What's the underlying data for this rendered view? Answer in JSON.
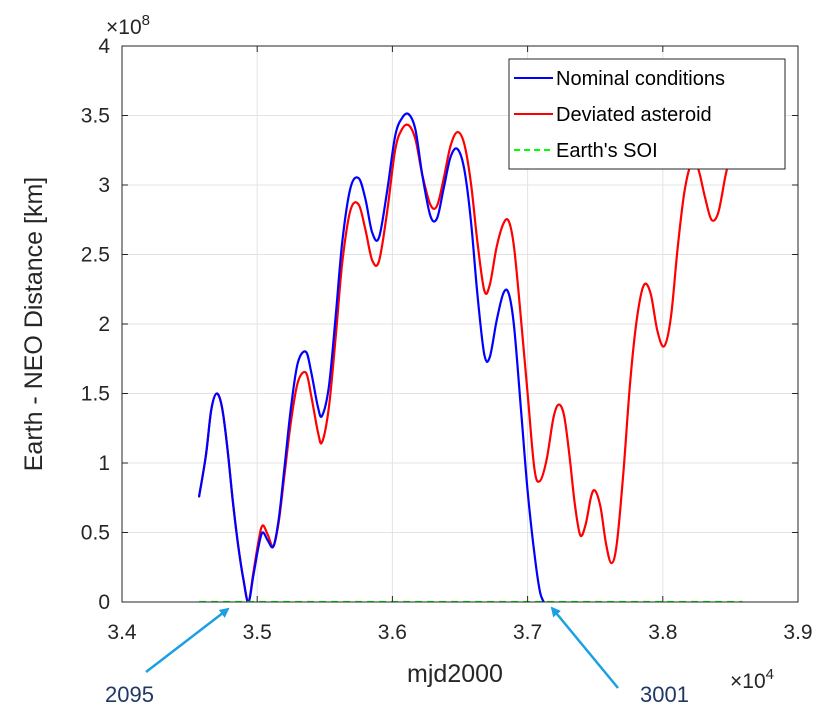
{
  "chart_data": {
    "type": "line",
    "xlabel": "mjd2000",
    "ylabel": "Earth - NEO Distance [km]",
    "x_exponent_label": "×10",
    "x_exponent_power": "4",
    "y_exponent_label": "×10",
    "y_exponent_power": "8",
    "xlim": [
      3.4,
      3.9
    ],
    "ylim": [
      0,
      4
    ],
    "x_ticks": [
      3.4,
      3.5,
      3.6,
      3.7,
      3.8,
      3.9
    ],
    "x_tick_labels": [
      "3.4",
      "3.5",
      "3.6",
      "3.7",
      "3.8",
      "3.9"
    ],
    "y_ticks": [
      0,
      0.5,
      1,
      1.5,
      2,
      2.5,
      3,
      3.5,
      4
    ],
    "y_tick_labels": [
      "0",
      "0.5",
      "1",
      "1.5",
      "2",
      "2.5",
      "3",
      "3.5",
      "4"
    ],
    "grid": true,
    "legend_position": "top-right",
    "series": [
      {
        "name": "Nominal conditions",
        "color": "#0000ff",
        "style": "solid",
        "points": [
          [
            3.457,
            0.76
          ],
          [
            3.462,
            1.05
          ],
          [
            3.466,
            1.38
          ],
          [
            3.47,
            1.5
          ],
          [
            3.474,
            1.4
          ],
          [
            3.478,
            1.1
          ],
          [
            3.482,
            0.72
          ],
          [
            3.486,
            0.4
          ],
          [
            3.49,
            0.15
          ],
          [
            3.4935,
            0.0
          ],
          [
            3.497,
            0.18
          ],
          [
            3.501,
            0.4
          ],
          [
            3.504,
            0.5
          ],
          [
            3.508,
            0.44
          ],
          [
            3.512,
            0.4
          ],
          [
            3.516,
            0.6
          ],
          [
            3.52,
            0.95
          ],
          [
            3.525,
            1.4
          ],
          [
            3.53,
            1.72
          ],
          [
            3.536,
            1.8
          ],
          [
            3.54,
            1.65
          ],
          [
            3.545,
            1.4
          ],
          [
            3.548,
            1.34
          ],
          [
            3.553,
            1.55
          ],
          [
            3.558,
            2.05
          ],
          [
            3.563,
            2.6
          ],
          [
            3.569,
            2.98
          ],
          [
            3.575,
            3.05
          ],
          [
            3.58,
            2.9
          ],
          [
            3.585,
            2.66
          ],
          [
            3.59,
            2.62
          ],
          [
            3.596,
            2.95
          ],
          [
            3.602,
            3.35
          ],
          [
            3.607,
            3.48
          ],
          [
            3.612,
            3.51
          ],
          [
            3.617,
            3.4
          ],
          [
            3.622,
            3.08
          ],
          [
            3.628,
            2.78
          ],
          [
            3.633,
            2.76
          ],
          [
            3.638,
            2.98
          ],
          [
            3.643,
            3.2
          ],
          [
            3.648,
            3.26
          ],
          [
            3.653,
            3.12
          ],
          [
            3.658,
            2.75
          ],
          [
            3.663,
            2.2
          ],
          [
            3.668,
            1.78
          ],
          [
            3.672,
            1.76
          ],
          [
            3.677,
            2.02
          ],
          [
            3.682,
            2.22
          ],
          [
            3.686,
            2.22
          ],
          [
            3.69,
            1.98
          ],
          [
            3.695,
            1.4
          ],
          [
            3.7,
            0.8
          ],
          [
            3.705,
            0.35
          ],
          [
            3.709,
            0.08
          ],
          [
            3.712,
            0.0
          ]
        ]
      },
      {
        "name": "Deviated asteroid",
        "color": "#ff0000",
        "style": "solid",
        "points": [
          [
            3.457,
            0.76
          ],
          [
            3.462,
            1.05
          ],
          [
            3.466,
            1.38
          ],
          [
            3.47,
            1.5
          ],
          [
            3.474,
            1.4
          ],
          [
            3.478,
            1.1
          ],
          [
            3.482,
            0.72
          ],
          [
            3.486,
            0.4
          ],
          [
            3.49,
            0.15
          ],
          [
            3.4935,
            0.0
          ],
          [
            3.497,
            0.2
          ],
          [
            3.501,
            0.44
          ],
          [
            3.504,
            0.55
          ],
          [
            3.508,
            0.48
          ],
          [
            3.512,
            0.4
          ],
          [
            3.516,
            0.58
          ],
          [
            3.52,
            0.9
          ],
          [
            3.525,
            1.3
          ],
          [
            3.53,
            1.58
          ],
          [
            3.536,
            1.65
          ],
          [
            3.54,
            1.48
          ],
          [
            3.545,
            1.22
          ],
          [
            3.548,
            1.15
          ],
          [
            3.553,
            1.4
          ],
          [
            3.558,
            1.9
          ],
          [
            3.563,
            2.45
          ],
          [
            3.569,
            2.82
          ],
          [
            3.575,
            2.86
          ],
          [
            3.58,
            2.68
          ],
          [
            3.585,
            2.46
          ],
          [
            3.59,
            2.45
          ],
          [
            3.596,
            2.8
          ],
          [
            3.602,
            3.25
          ],
          [
            3.607,
            3.4
          ],
          [
            3.612,
            3.43
          ],
          [
            3.617,
            3.33
          ],
          [
            3.622,
            3.08
          ],
          [
            3.628,
            2.86
          ],
          [
            3.633,
            2.85
          ],
          [
            3.638,
            3.05
          ],
          [
            3.643,
            3.28
          ],
          [
            3.648,
            3.38
          ],
          [
            3.653,
            3.3
          ],
          [
            3.658,
            3.02
          ],
          [
            3.663,
            2.58
          ],
          [
            3.668,
            2.24
          ],
          [
            3.672,
            2.28
          ],
          [
            3.677,
            2.55
          ],
          [
            3.682,
            2.72
          ],
          [
            3.686,
            2.74
          ],
          [
            3.69,
            2.55
          ],
          [
            3.695,
            2.05
          ],
          [
            3.7,
            1.5
          ],
          [
            3.705,
            0.96
          ],
          [
            3.709,
            0.87
          ],
          [
            3.714,
            1.02
          ],
          [
            3.719,
            1.32
          ],
          [
            3.723,
            1.42
          ],
          [
            3.727,
            1.34
          ],
          [
            3.731,
            1.05
          ],
          [
            3.735,
            0.7
          ],
          [
            3.739,
            0.48
          ],
          [
            3.743,
            0.56
          ],
          [
            3.747,
            0.76
          ],
          [
            3.75,
            0.8
          ],
          [
            3.754,
            0.68
          ],
          [
            3.758,
            0.42
          ],
          [
            3.762,
            0.28
          ],
          [
            3.766,
            0.42
          ],
          [
            3.771,
            0.95
          ],
          [
            3.776,
            1.6
          ],
          [
            3.781,
            2.05
          ],
          [
            3.786,
            2.28
          ],
          [
            3.791,
            2.22
          ],
          [
            3.796,
            1.95
          ],
          [
            3.801,
            1.84
          ],
          [
            3.806,
            2.05
          ],
          [
            3.811,
            2.55
          ],
          [
            3.816,
            2.95
          ],
          [
            3.821,
            3.15
          ],
          [
            3.826,
            3.12
          ],
          [
            3.831,
            2.92
          ],
          [
            3.836,
            2.75
          ],
          [
            3.841,
            2.8
          ],
          [
            3.846,
            3.05
          ],
          [
            3.849,
            3.18
          ]
        ]
      },
      {
        "name": "Earth's SOI",
        "color": "#00ff00",
        "style": "dashed",
        "points": [
          [
            3.457,
            0.0
          ],
          [
            3.859,
            0.0
          ]
        ]
      }
    ],
    "annotations": [
      {
        "text": "2095",
        "color": "#1f3864",
        "arrow_color": "#1ba1e2",
        "x": 3.4935,
        "y": 0.0
      },
      {
        "text": "3001",
        "color": "#1f3864",
        "arrow_color": "#1ba1e2",
        "x": 3.712,
        "y": 0.0
      }
    ]
  }
}
